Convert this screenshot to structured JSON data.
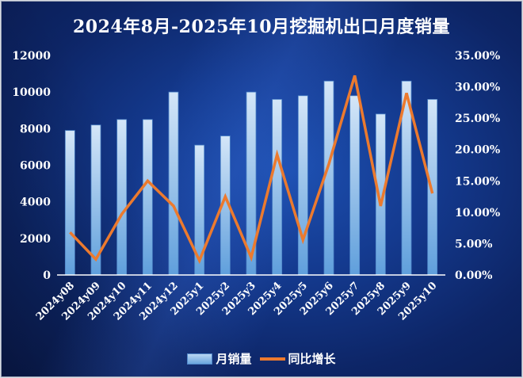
{
  "chart_data": {
    "type": "bar+line",
    "title": "2024年8月-2025年10月挖掘机出口月度销量",
    "categories": [
      "2024y08",
      "2024y09",
      "2024y10",
      "2024y11",
      "2024y12",
      "2025y1",
      "2025y2",
      "2025y3",
      "2025y4",
      "2025y5",
      "2025y6",
      "2025y7",
      "2025y8",
      "2025y9",
      "2025y10"
    ],
    "series": [
      {
        "name": "月销量",
        "type": "bar",
        "axis": "left",
        "color": "#8fbfeb",
        "values": [
          7900,
          8200,
          8500,
          8500,
          10000,
          7100,
          7600,
          10000,
          9600,
          9800,
          10600,
          9800,
          8800,
          10600,
          9600
        ]
      },
      {
        "name": "同比增长",
        "type": "line",
        "axis": "right",
        "color": "#ec7a2e",
        "values": [
          6.8,
          2.5,
          9.7,
          15.0,
          11.0,
          2.3,
          12.5,
          2.8,
          19.2,
          5.6,
          17.7,
          31.8,
          11.0,
          29.0,
          13.0
        ]
      }
    ],
    "left_axis": {
      "ylim": [
        0,
        12000
      ],
      "ticks": [
        "0",
        "2000",
        "4000",
        "6000",
        "8000",
        "10000",
        "12000"
      ]
    },
    "right_axis": {
      "ylim": [
        0,
        35
      ],
      "ticks": [
        "0.00%",
        "5.00%",
        "10.00%",
        "15.00%",
        "20.00%",
        "25.00%",
        "30.00%",
        "35.00%"
      ]
    },
    "xlabel": "",
    "ylabel": "",
    "grid": false,
    "legend_position": "bottom"
  },
  "legend": {
    "bar_label": "月销量",
    "line_label": "同比增长"
  }
}
